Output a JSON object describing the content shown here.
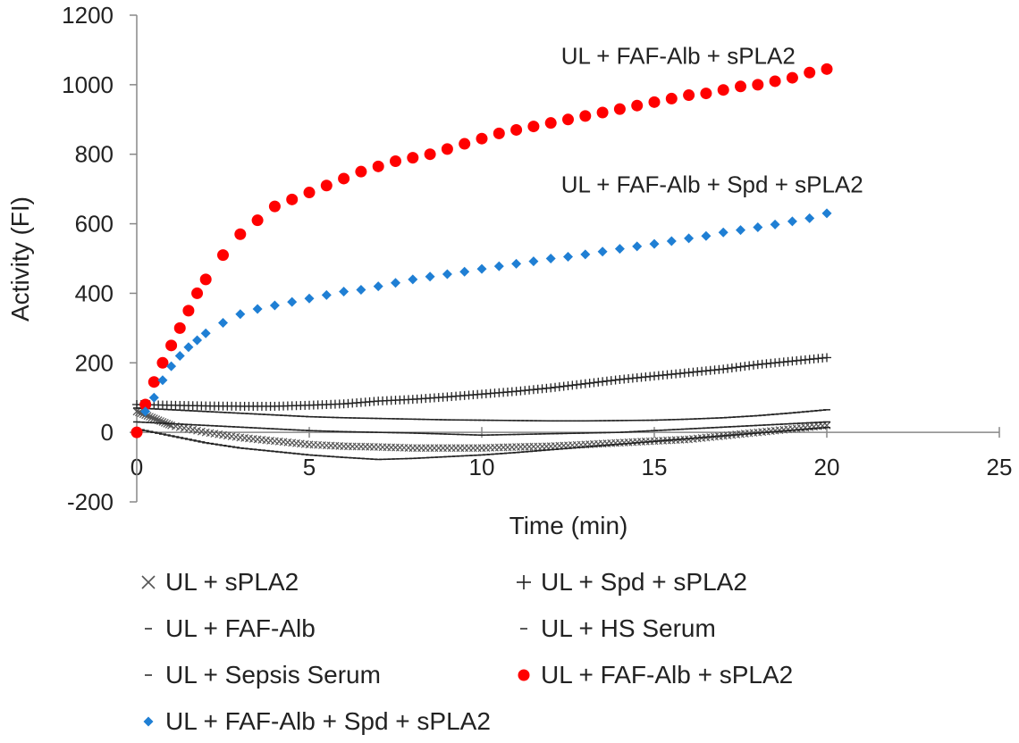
{
  "chart_data": {
    "type": "scatter",
    "xlabel": "Time (min)",
    "ylabel": "Activity (FI)",
    "xlim": [
      0,
      25
    ],
    "ylim": [
      -200,
      1200
    ],
    "x_ticks": [
      "0",
      "5",
      "10",
      "15",
      "20",
      "25"
    ],
    "y_ticks": [
      "-200",
      "0",
      "200",
      "400",
      "600",
      "800",
      "1000",
      "1200"
    ],
    "grid": false,
    "legend_position": "bottom",
    "annotations": [
      {
        "text": "UL + FAF-Alb + sPLA2",
        "x": 12.3,
        "y": 1060
      },
      {
        "text": "UL + FAF-Alb + Spd + sPLA2",
        "x": 12.3,
        "y": 690
      }
    ],
    "series": [
      {
        "name": "UL + sPLA2",
        "marker": "x",
        "color": "#555555",
        "x": [
          0,
          0.5,
          1,
          2,
          3,
          4,
          5,
          6,
          7,
          8,
          9,
          10,
          11,
          12,
          13,
          14,
          15,
          16,
          17,
          18,
          19,
          20
        ],
        "y": [
          60,
          40,
          20,
          0,
          -15,
          -25,
          -35,
          -40,
          -42,
          -45,
          -45,
          -45,
          -42,
          -40,
          -35,
          -30,
          -25,
          -20,
          -10,
          0,
          10,
          20
        ]
      },
      {
        "name": "UL + Spd + sPLA2",
        "marker": "+",
        "color": "#222222",
        "x": [
          0,
          1,
          2,
          3,
          4,
          5,
          6,
          7,
          8,
          9,
          10,
          11,
          12,
          13,
          14,
          15,
          16,
          17,
          18,
          19,
          20
        ],
        "y": [
          80,
          78,
          76,
          75,
          75,
          78,
          82,
          90,
          95,
          102,
          110,
          118,
          128,
          140,
          152,
          162,
          172,
          182,
          195,
          205,
          215
        ]
      },
      {
        "name": "UL + FAF-Alb",
        "marker": "-",
        "color": "#222222",
        "x": [
          0,
          1,
          2,
          3,
          4,
          5,
          6,
          7,
          8,
          9,
          10,
          11,
          12,
          13,
          14,
          15,
          16,
          17,
          18,
          19,
          20
        ],
        "y": [
          70,
          65,
          60,
          55,
          50,
          45,
          42,
          40,
          38,
          36,
          35,
          34,
          33,
          33,
          34,
          35,
          38,
          42,
          48,
          56,
          65
        ]
      },
      {
        "name": "UL + HS Serum",
        "marker": "-",
        "color": "#222222",
        "x": [
          0,
          1,
          2,
          3,
          4,
          5,
          6,
          7,
          8,
          9,
          10,
          11,
          12,
          13,
          14,
          15,
          16,
          17,
          18,
          19,
          20
        ],
        "y": [
          30,
          25,
          20,
          15,
          10,
          5,
          2,
          0,
          -2,
          -5,
          -8,
          -6,
          -4,
          -2,
          0,
          5,
          10,
          15,
          20,
          25,
          30
        ]
      },
      {
        "name": "UL + Sepsis Serum",
        "marker": "-",
        "color": "#222222",
        "x": [
          0,
          1,
          2,
          3,
          4,
          5,
          6,
          7,
          8,
          9,
          10,
          11,
          12,
          13,
          14,
          15,
          16,
          17,
          18,
          19,
          20
        ],
        "y": [
          10,
          -10,
          -30,
          -45,
          -55,
          -65,
          -72,
          -78,
          -75,
          -70,
          -65,
          -58,
          -50,
          -42,
          -34,
          -26,
          -18,
          -10,
          -2,
          6,
          14
        ]
      },
      {
        "name": "UL + FAF-Alb + sPLA2",
        "marker": "circle",
        "color": "#ff0000",
        "x": [
          0,
          0.25,
          0.5,
          0.75,
          1,
          1.25,
          1.5,
          1.75,
          2,
          2.5,
          3,
          3.5,
          4,
          4.5,
          5,
          5.5,
          6,
          6.5,
          7,
          7.5,
          8,
          8.5,
          9,
          9.5,
          10,
          10.5,
          11,
          11.5,
          12,
          12.5,
          13,
          13.5,
          14,
          14.5,
          15,
          15.5,
          16,
          16.5,
          17,
          17.5,
          18,
          18.5,
          19,
          19.5,
          20
        ],
        "y": [
          0,
          80,
          145,
          200,
          250,
          300,
          350,
          400,
          440,
          510,
          570,
          610,
          650,
          670,
          690,
          710,
          730,
          750,
          765,
          780,
          790,
          800,
          815,
          830,
          845,
          860,
          870,
          880,
          890,
          900,
          910,
          920,
          930,
          940,
          950,
          960,
          970,
          975,
          985,
          995,
          1000,
          1010,
          1020,
          1035,
          1045
        ]
      },
      {
        "name": "UL + FAF-Alb + Spd + sPLA2",
        "marker": "diamond",
        "color": "#1f7fd4",
        "x": [
          0.25,
          0.5,
          0.75,
          1,
          1.25,
          1.5,
          1.75,
          2,
          2.5,
          3,
          3.5,
          4,
          4.5,
          5,
          5.5,
          6,
          6.5,
          7,
          7.5,
          8,
          8.5,
          9,
          9.5,
          10,
          10.5,
          11,
          11.5,
          12,
          12.5,
          13,
          13.5,
          14,
          14.5,
          15,
          15.5,
          16,
          16.5,
          17,
          17.5,
          18,
          18.5,
          19,
          19.5,
          20
        ],
        "y": [
          60,
          100,
          150,
          190,
          220,
          245,
          265,
          285,
          315,
          340,
          355,
          365,
          375,
          385,
          395,
          405,
          410,
          420,
          430,
          440,
          448,
          455,
          462,
          470,
          478,
          485,
          492,
          500,
          505,
          512,
          520,
          528,
          535,
          542,
          550,
          558,
          565,
          575,
          582,
          590,
          598,
          607,
          616,
          630
        ]
      }
    ]
  }
}
